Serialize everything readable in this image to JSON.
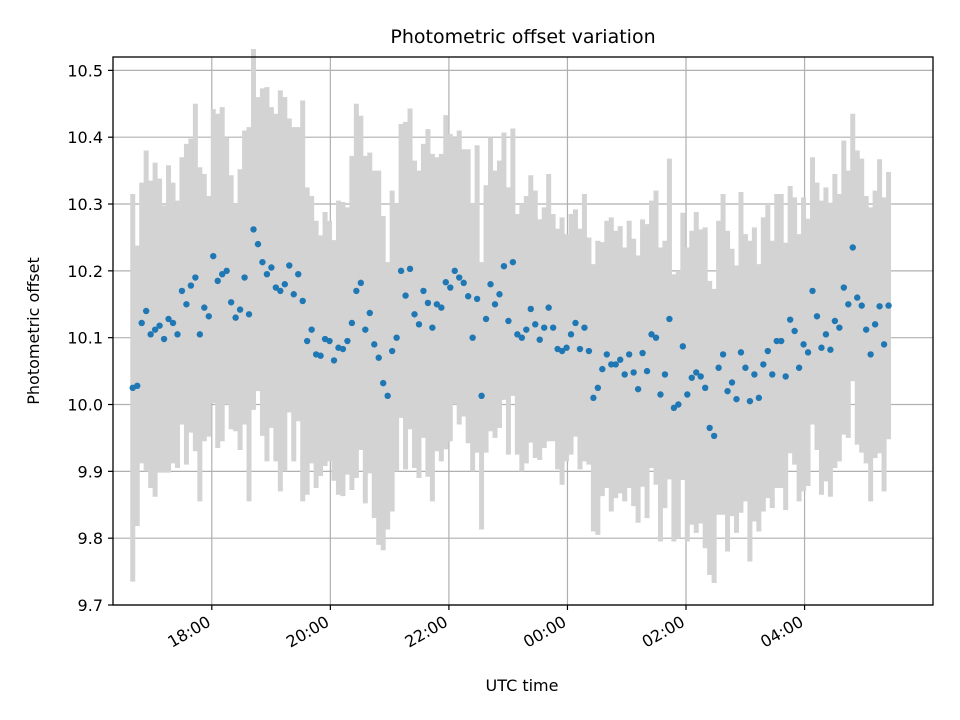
{
  "chart_data": {
    "type": "scatter",
    "title": "Photometric offset variation",
    "xlabel": "UTC time",
    "ylabel": "Photometric offset",
    "x_start_time": "16:40",
    "x_end_time": "05:25",
    "xlim": [
      "16:20",
      "06:10"
    ],
    "ylim": [
      9.7,
      10.52
    ],
    "yticks": [
      9.7,
      9.8,
      9.9,
      10.0,
      10.1,
      10.2,
      10.3,
      10.4,
      10.5
    ],
    "ytick_labels": [
      "9.7",
      "9.8",
      "9.9",
      "10.0",
      "10.1",
      "10.2",
      "10.3",
      "10.4",
      "10.5"
    ],
    "xticks": [
      "18:00",
      "20:00",
      "22:00",
      "00:00",
      "02:00",
      "04:00"
    ],
    "grid": true,
    "colors": {
      "point": "#1f77b4",
      "errorbar": "#d3d3d3",
      "grid": "#b0b0b0"
    },
    "series": [
      {
        "values": [
          10.025,
          10.028,
          10.122,
          10.14,
          10.105,
          10.112,
          10.118,
          10.098,
          10.128,
          10.122,
          10.105,
          10.17,
          10.15,
          10.178,
          10.19,
          10.105,
          10.145,
          10.132,
          10.222,
          10.185,
          10.195,
          10.2,
          10.153,
          10.13,
          10.142,
          10.19,
          10.135,
          10.262,
          10.24,
          10.213,
          10.195,
          10.205,
          10.175,
          10.17,
          10.18,
          10.208,
          10.165,
          10.195,
          10.155,
          10.095,
          10.112,
          10.075,
          10.073,
          10.098,
          10.095,
          10.066,
          10.085,
          10.083,
          10.095,
          10.122,
          10.17,
          10.182,
          10.112,
          10.137,
          10.09,
          10.07,
          10.032,
          10.013,
          10.08,
          10.1,
          10.2,
          10.163,
          10.203,
          10.135,
          10.12,
          10.17,
          10.152,
          10.115,
          10.15,
          10.145,
          10.183,
          10.175,
          10.2,
          10.19,
          10.182,
          10.162,
          10.1,
          10.158,
          10.013,
          10.128,
          10.18,
          10.15,
          10.165,
          10.207,
          10.125,
          10.213,
          10.105,
          10.1,
          10.112,
          10.143,
          10.12,
          10.097,
          10.115,
          10.145,
          10.115,
          10.083,
          10.08,
          10.085,
          10.105,
          10.122,
          10.083,
          10.115,
          10.08,
          10.01,
          10.025,
          10.053,
          10.075,
          10.06,
          10.06,
          10.067,
          10.045,
          10.075,
          10.048,
          10.023,
          10.077,
          10.05,
          10.105,
          10.1,
          10.015,
          10.045,
          10.128,
          9.995,
          10.0,
          10.087,
          10.015,
          10.04,
          10.048,
          10.042,
          10.025,
          9.965,
          9.953,
          10.055,
          10.075,
          10.02,
          10.033,
          10.008,
          10.078,
          10.055,
          10.005,
          10.045,
          10.01,
          10.06,
          10.08,
          10.045,
          10.095,
          10.095,
          10.042,
          10.127,
          10.11,
          10.055,
          10.09,
          10.078,
          10.17,
          10.132,
          10.085,
          10.105,
          10.082,
          10.125,
          10.115,
          10.175,
          10.15,
          10.235,
          10.16,
          10.148,
          10.112,
          10.075,
          10.12,
          10.147,
          10.09,
          10.148
        ],
        "errors": [
          0.29,
          0.21,
          0.21,
          0.24,
          0.23,
          0.25,
          0.22,
          0.2,
          0.23,
          0.21,
          0.2,
          0.2,
          0.24,
          0.22,
          0.26,
          0.25,
          0.2,
          0.18,
          0.22,
          0.25,
          0.25,
          0.2,
          0.19,
          0.17,
          0.21,
          0.22,
          0.28,
          0.27,
          0.22,
          0.26,
          0.28,
          0.24,
          0.26,
          0.3,
          0.28,
          0.22,
          0.25,
          0.22,
          0.3,
          0.23,
          0.2,
          0.2,
          0.18,
          0.19,
          0.18,
          0.18,
          0.22,
          0.22,
          0.2,
          0.25,
          0.28,
          0.25,
          0.26,
          0.24,
          0.26,
          0.28,
          0.25,
          0.2,
          0.24,
          0.2,
          0.22,
          0.26,
          0.24,
          0.23,
          0.23,
          0.22,
          0.26,
          0.26,
          0.22,
          0.23,
          0.25,
          0.23,
          0.2,
          0.22,
          0.2,
          0.22,
          0.2,
          0.23,
          0.2,
          0.2,
          0.22,
          0.2,
          0.2,
          0.2,
          0.2,
          0.2,
          0.18,
          0.2,
          0.2,
          0.2,
          0.2,
          0.18,
          0.18,
          0.2,
          0.17,
          0.18,
          0.2,
          0.17,
          0.18,
          0.17,
          0.18,
          0.2,
          0.17,
          0.2,
          0.22,
          0.19,
          0.2,
          0.22,
          0.2,
          0.2,
          0.19,
          0.2,
          0.2,
          0.2,
          0.2,
          0.22,
          0.2,
          0.22,
          0.22,
          0.2,
          0.24,
          0.2,
          0.2,
          0.2,
          0.22,
          0.22,
          0.24,
          0.22,
          0.24,
          0.22,
          0.22,
          0.22,
          0.24,
          0.24,
          0.2,
          0.2,
          0.24,
          0.2,
          0.24,
          0.22,
          0.2,
          0.22,
          0.22,
          0.2,
          0.22,
          0.22,
          0.2,
          0.2,
          0.2,
          0.2,
          0.22,
          0.2,
          0.2,
          0.2,
          0.22,
          0.22,
          0.22,
          0.22,
          0.2,
          0.22,
          0.2,
          0.2,
          0.22,
          0.22,
          0.2,
          0.22,
          0.2,
          0.22,
          0.22,
          0.2
        ]
      }
    ]
  }
}
